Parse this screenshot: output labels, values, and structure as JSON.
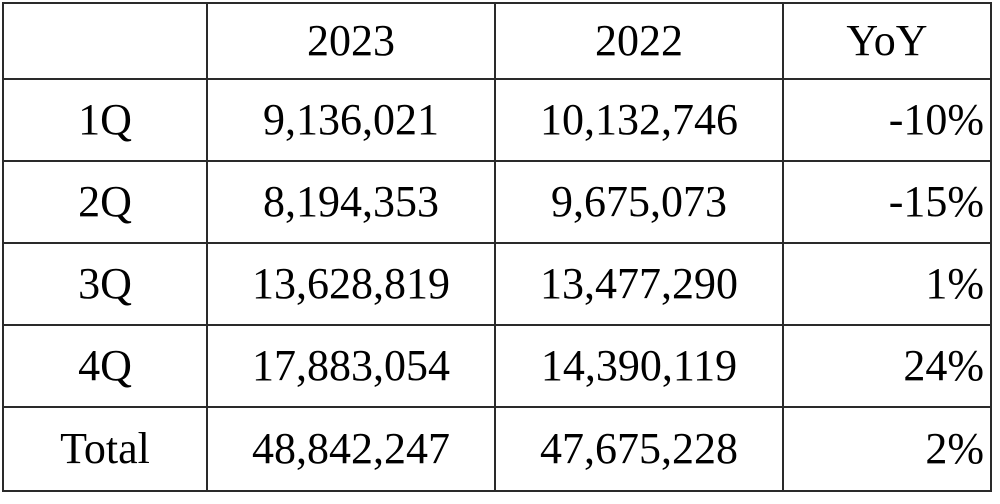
{
  "chart_data": {
    "type": "table",
    "columns": [
      "",
      "2023",
      "2022",
      "YoY"
    ],
    "rows": [
      {
        "label": "1Q",
        "y2023": "9,136,021",
        "y2022": "10,132,746",
        "yoy": "-10%"
      },
      {
        "label": "2Q",
        "y2023": "8,194,353",
        "y2022": "9,675,073",
        "yoy": "-15%"
      },
      {
        "label": "3Q",
        "y2023": "13,628,819",
        "y2022": "13,477,290",
        "yoy": "1%"
      },
      {
        "label": "4Q",
        "y2023": "17,883,054",
        "y2022": "14,390,119",
        "yoy": "24%"
      },
      {
        "label": "Total",
        "y2023": "48,842,247",
        "y2022": "47,675,228",
        "yoy": "2%"
      }
    ]
  }
}
